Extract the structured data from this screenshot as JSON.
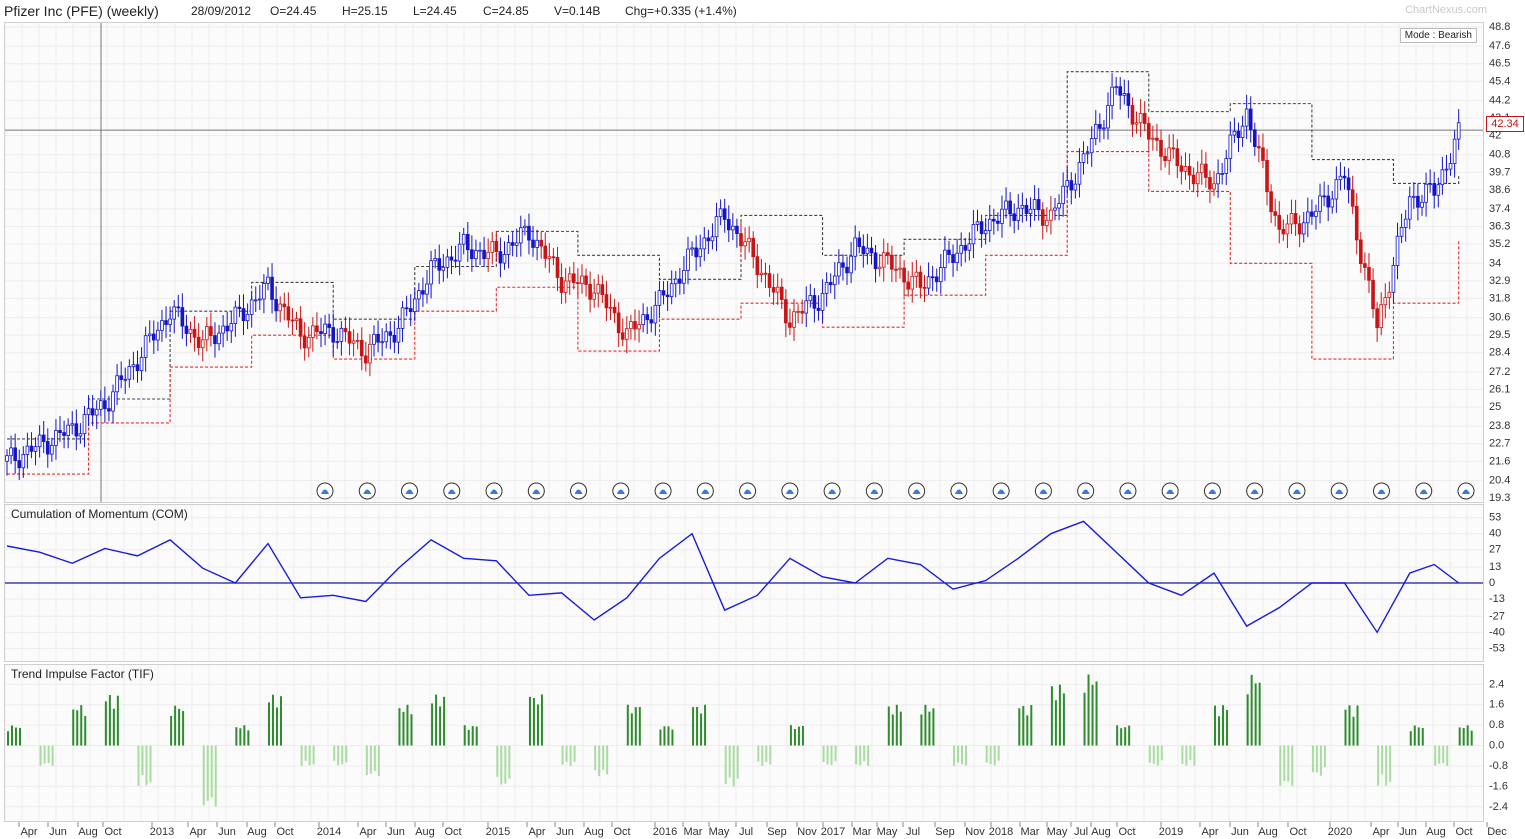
{
  "header": {
    "title": "Pfizer Inc (PFE) (weekly)",
    "date": "28/09/2012",
    "open": "O=24.45",
    "high": "H=25.15",
    "low": "L=24.45",
    "close": "C=24.85",
    "volume": "V=0.14B",
    "change": "Chg=+0.335 (+1.4%)",
    "brand": "ChartNexus.com"
  },
  "mode_label": "Mode : Bearish",
  "price_badge": "42.34",
  "colors": {
    "bull": "#1414c8",
    "bear": "#c81414",
    "tif_pos": "#2e8b2e",
    "tif_neg": "#a8dca0",
    "com_line": "#1a1adc"
  },
  "chart_data": [
    {
      "type": "candlestick",
      "panel": "price",
      "title": "Pfizer Inc (PFE) (weekly)",
      "y_ticks": [
        "48.8",
        "47.6",
        "46.5",
        "45.4",
        "44.2",
        "43.1",
        "42",
        "40.8",
        "39.7",
        "38.6",
        "37.4",
        "36.3",
        "35.2",
        "34",
        "32.9",
        "31.8",
        "30.6",
        "29.5",
        "28.4",
        "27.2",
        "26.1",
        "25",
        "23.8",
        "22.7",
        "21.6",
        "20.4",
        "19.3"
      ],
      "ylim": [
        19.3,
        48.8
      ],
      "crosshair": {
        "date_index": 22,
        "price": 42.34
      },
      "series": [
        {
          "name": "close",
          "x": [
            0,
            8,
            16,
            24,
            32,
            40,
            48,
            56,
            64,
            72,
            80,
            88,
            96,
            104,
            112,
            120,
            128,
            136,
            144,
            152,
            160,
            168,
            176,
            184,
            192,
            200,
            208,
            216,
            224,
            232,
            240,
            248,
            256,
            264,
            272,
            280,
            288,
            296,
            304,
            312,
            320,
            328,
            336,
            344,
            350,
            356
          ],
          "values": [
            21.6,
            22.6,
            23.6,
            25.2,
            28.0,
            31.0,
            29.0,
            30.5,
            32.5,
            29.5,
            29.8,
            28.5,
            30.0,
            33.5,
            35.0,
            34.5,
            36.0,
            33.0,
            32.5,
            29.5,
            31.5,
            34.5,
            37.0,
            34.0,
            30.5,
            32.0,
            35.0,
            34.0,
            32.5,
            34.5,
            36.5,
            37.5,
            37.0,
            40.5,
            45.0,
            42.0,
            40.0,
            39.0,
            43.5,
            36.0,
            37.0,
            39.5,
            30.0,
            38.0,
            38.5,
            42.0
          ]
        },
        {
          "name": "trail_stop_upper",
          "x": [
            0,
            20,
            40,
            60,
            80,
            100,
            120,
            140,
            160,
            180,
            200,
            220,
            240,
            260,
            280,
            300,
            320,
            340,
            356
          ],
          "values": [
            23.0,
            25.5,
            31.0,
            32.8,
            30.5,
            33.8,
            36.0,
            34.5,
            33.0,
            37.0,
            34.5,
            35.5,
            37.0,
            46.0,
            43.5,
            44.0,
            40.5,
            39.0,
            39.5
          ]
        },
        {
          "name": "trail_stop_lower",
          "x": [
            0,
            20,
            40,
            60,
            80,
            100,
            120,
            140,
            160,
            180,
            200,
            220,
            240,
            260,
            280,
            300,
            320,
            340,
            356
          ],
          "values": [
            20.8,
            24.0,
            27.5,
            29.5,
            28.0,
            31.0,
            32.5,
            28.5,
            30.5,
            31.5,
            30.0,
            32.0,
            34.5,
            41.0,
            38.5,
            34.0,
            28.0,
            31.5,
            35.5
          ]
        }
      ],
      "alert_icons": 28
    },
    {
      "type": "line",
      "panel": "COM",
      "title": "Cumulation of Momentum (COM)",
      "y_ticks": [
        "53",
        "40",
        "27",
        "13",
        "0",
        "-13",
        "-27",
        "-40",
        "-53"
      ],
      "ylim": [
        -60,
        60
      ],
      "x": [
        0,
        8,
        16,
        24,
        32,
        40,
        48,
        56,
        64,
        72,
        80,
        88,
        96,
        104,
        112,
        120,
        128,
        136,
        144,
        152,
        160,
        168,
        176,
        184,
        192,
        200,
        208,
        216,
        224,
        232,
        240,
        248,
        256,
        264,
        272,
        280,
        288,
        296,
        304,
        312,
        320,
        328,
        336,
        344,
        350,
        356
      ],
      "values": [
        30,
        25,
        16,
        28,
        22,
        35,
        12,
        0,
        32,
        -12,
        -10,
        -15,
        12,
        35,
        20,
        18,
        -10,
        -8,
        -30,
        -12,
        20,
        40,
        -22,
        -10,
        20,
        5,
        0,
        20,
        15,
        -5,
        2,
        20,
        40,
        50,
        25,
        0,
        -10,
        8,
        -35,
        -20,
        0,
        0,
        -40,
        8,
        15,
        0
      ]
    },
    {
      "type": "bar",
      "panel": "TIF",
      "title": "Trend Impulse Factor (TIF)",
      "y_ticks": [
        "2.4",
        "1.6",
        "0.8",
        "0.0",
        "-0.8",
        "-1.6",
        "-2.4"
      ],
      "ylim": [
        -2.8,
        3.0
      ],
      "x": [
        0,
        8,
        16,
        24,
        32,
        40,
        48,
        56,
        64,
        72,
        80,
        88,
        96,
        104,
        112,
        120,
        128,
        136,
        144,
        152,
        160,
        168,
        176,
        184,
        192,
        200,
        208,
        216,
        224,
        232,
        240,
        248,
        256,
        264,
        272,
        280,
        288,
        296,
        304,
        312,
        320,
        328,
        336,
        344,
        350,
        356
      ],
      "values": [
        0.8,
        -0.8,
        1.6,
        2.0,
        -1.6,
        1.6,
        -2.4,
        0.8,
        2.0,
        -0.8,
        -0.8,
        -1.2,
        1.6,
        2.0,
        0.8,
        -1.6,
        2.0,
        -0.8,
        -1.2,
        1.6,
        0.8,
        1.6,
        -1.6,
        -0.8,
        0.8,
        -0.8,
        -0.8,
        1.6,
        1.6,
        -0.8,
        -0.8,
        1.6,
        2.4,
        2.8,
        0.8,
        -0.8,
        -0.8,
        1.6,
        2.8,
        -1.6,
        -1.2,
        1.6,
        -1.6,
        0.8,
        -0.8,
        0.8
      ]
    }
  ],
  "x_axis": {
    "labels": [
      {
        "text": "Apr",
        "pos": 29
      },
      {
        "text": "Jun",
        "pos": 58
      },
      {
        "text": "Aug",
        "pos": 88
      },
      {
        "text": "Oct",
        "pos": 113
      },
      {
        "text": "2013",
        "pos": 162
      },
      {
        "text": "Apr",
        "pos": 198
      },
      {
        "text": "Jun",
        "pos": 227
      },
      {
        "text": "Aug",
        "pos": 257
      },
      {
        "text": "Oct",
        "pos": 285
      },
      {
        "text": "2014",
        "pos": 329
      },
      {
        "text": "Apr",
        "pos": 368
      },
      {
        "text": "Jun",
        "pos": 396
      },
      {
        "text": "Aug",
        "pos": 425
      },
      {
        "text": "Oct",
        "pos": 453
      },
      {
        "text": "2015",
        "pos": 498
      },
      {
        "text": "Apr",
        "pos": 537
      },
      {
        "text": "Jun",
        "pos": 565
      },
      {
        "text": "Aug",
        "pos": 594
      },
      {
        "text": "Oct",
        "pos": 622
      },
      {
        "text": "2016",
        "pos": 665
      },
      {
        "text": "Mar",
        "pos": 693
      },
      {
        "text": "May",
        "pos": 719
      },
      {
        "text": "Jul",
        "pos": 746
      },
      {
        "text": "Sep",
        "pos": 777
      },
      {
        "text": "Nov",
        "pos": 807
      },
      {
        "text": "2017",
        "pos": 833
      },
      {
        "text": "Mar",
        "pos": 862
      },
      {
        "text": "May",
        "pos": 887
      },
      {
        "text": "Jul",
        "pos": 913
      },
      {
        "text": "Sep",
        "pos": 945
      },
      {
        "text": "Nov",
        "pos": 975
      },
      {
        "text": "2018",
        "pos": 1001
      },
      {
        "text": "Mar",
        "pos": 1030
      },
      {
        "text": "May",
        "pos": 1057
      },
      {
        "text": "Jul",
        "pos": 1081
      },
      {
        "text": "Aug",
        "pos": 1101
      },
      {
        "text": "Oct",
        "pos": 1127
      },
      {
        "text": "2019",
        "pos": 1171
      },
      {
        "text": "Apr",
        "pos": 1210
      },
      {
        "text": "Jun",
        "pos": 1240
      },
      {
        "text": "Aug",
        "pos": 1268
      },
      {
        "text": "Oct",
        "pos": 1298
      },
      {
        "text": "2020",
        "pos": 1340
      },
      {
        "text": "Apr",
        "pos": 1381
      },
      {
        "text": "Jun",
        "pos": 1408
      },
      {
        "text": "Aug",
        "pos": 1436
      },
      {
        "text": "Oct",
        "pos": 1464
      },
      {
        "text": "Dec",
        "pos": 1497
      }
    ]
  }
}
